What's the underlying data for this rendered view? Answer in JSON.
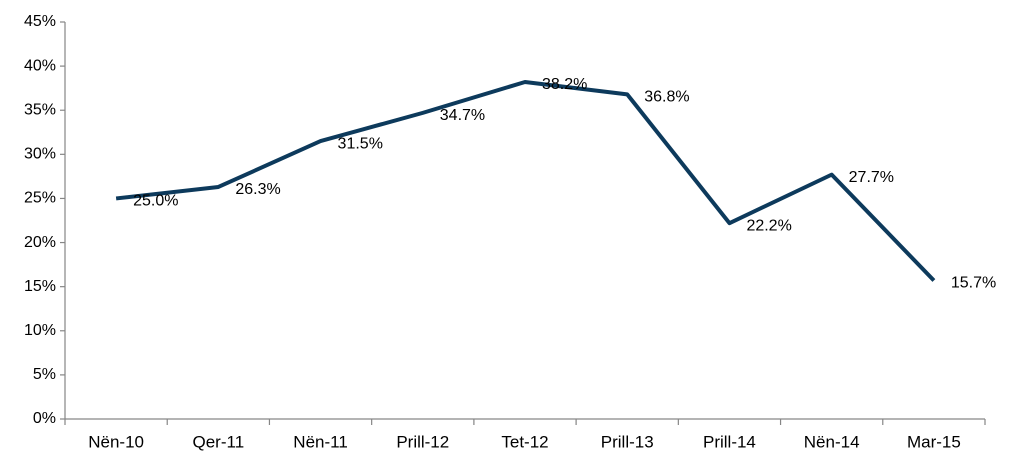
{
  "chart_data": {
    "type": "line",
    "categories": [
      "Nën-10",
      "Qer-11",
      "Nën-11",
      "Prill-12",
      "Tet-12",
      "Prill-13",
      "Prill-14",
      "Nën-14",
      "Mar-15"
    ],
    "values": [
      25.0,
      26.3,
      31.5,
      34.7,
      38.2,
      36.8,
      22.2,
      27.7,
      15.7
    ],
    "value_labels": [
      "25.0%",
      "26.3%",
      "31.5%",
      "34.7%",
      "38.2%",
      "36.8%",
      "22.2%",
      "27.7%",
      "15.7%"
    ],
    "color": "#0d3a5c",
    "ylim": [
      0,
      45
    ],
    "yticks": [
      {
        "value": 0,
        "label": "0%"
      },
      {
        "value": 5,
        "label": "5%"
      },
      {
        "value": 10,
        "label": "10%"
      },
      {
        "value": 15,
        "label": "15%"
      },
      {
        "value": 20,
        "label": "20%"
      },
      {
        "value": 25,
        "label": "25%"
      },
      {
        "value": 30,
        "label": "30%"
      },
      {
        "value": 35,
        "label": "35%"
      },
      {
        "value": 40,
        "label": "40%"
      },
      {
        "value": 45,
        "label": "45%"
      }
    ],
    "grid": false
  }
}
